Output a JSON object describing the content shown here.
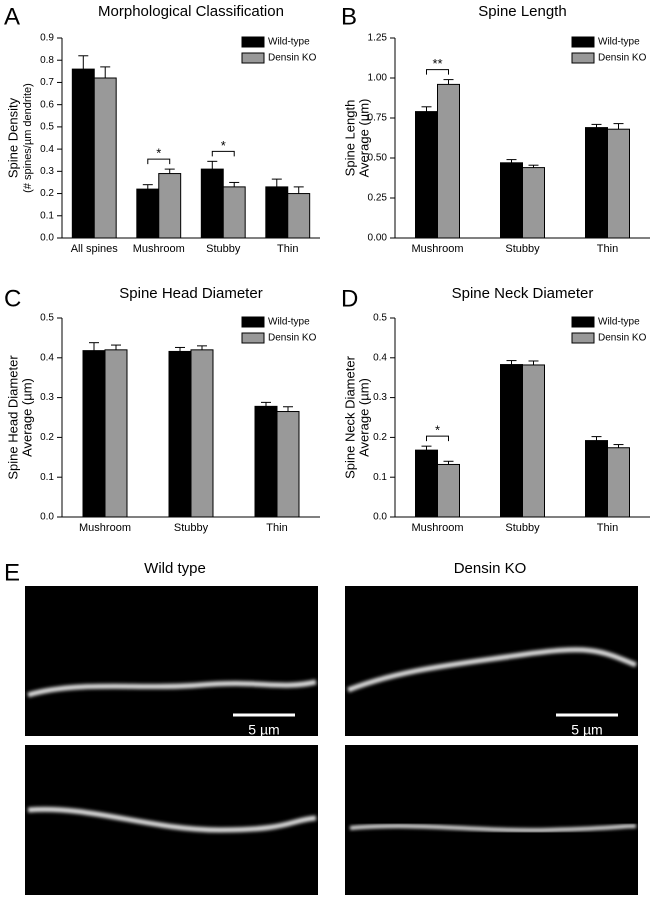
{
  "chart_data": [
    {
      "type": "bar",
      "panel": "A",
      "title": "Morphological Classification",
      "ylabel": [
        "Spine Density",
        "(# spines/µm dendrite)"
      ],
      "categories": [
        "All spines",
        "Mushroom",
        "Stubby",
        "Thin"
      ],
      "series": [
        {
          "name": "Wild-type",
          "color": "#000000",
          "values": [
            0.76,
            0.22,
            0.31,
            0.23
          ],
          "errors": [
            0.06,
            0.02,
            0.035,
            0.035
          ]
        },
        {
          "name": "Densin KO",
          "color": "#999999",
          "values": [
            0.72,
            0.29,
            0.23,
            0.2
          ],
          "errors": [
            0.05,
            0.02,
            0.02,
            0.03
          ]
        }
      ],
      "annotations": [
        {
          "label": "*",
          "category": "Mushroom"
        },
        {
          "label": "*",
          "category": "Stubby"
        }
      ],
      "ylim": [
        0,
        0.9
      ],
      "yticks": [
        {
          "value": 0,
          "label": "0.0"
        },
        0.1,
        0.2,
        0.3,
        0.4,
        0.5,
        0.6,
        0.7,
        0.8,
        0.9
      ]
    },
    {
      "type": "bar",
      "panel": "B",
      "title": "Spine Length",
      "ylabel": [
        "Spine Length",
        "Average (µm)"
      ],
      "categories": [
        "Mushroom",
        "Stubby",
        "Thin"
      ],
      "series": [
        {
          "name": "Wild-type",
          "color": "#000000",
          "values": [
            0.79,
            0.47,
            0.69
          ],
          "errors": [
            0.03,
            0.02,
            0.02
          ]
        },
        {
          "name": "Densin KO",
          "color": "#999999",
          "values": [
            0.96,
            0.44,
            0.68
          ],
          "errors": [
            0.03,
            0.015,
            0.035
          ]
        }
      ],
      "annotations": [
        {
          "label": "**",
          "category": "Mushroom"
        }
      ],
      "ylim": [
        0,
        1.25
      ],
      "yticks": [
        {
          "value": 0,
          "label": "0.00"
        },
        0.25,
        {
          "value": 0.5,
          "label": "0.50"
        },
        0.75,
        {
          "value": 1,
          "label": "1.00"
        },
        1.25
      ]
    },
    {
      "type": "bar",
      "panel": "C",
      "title": "Spine Head Diameter",
      "ylabel": [
        "Spine Head Diameter",
        "Average (µm)"
      ],
      "categories": [
        "Mushroom",
        "Stubby",
        "Thin"
      ],
      "series": [
        {
          "name": "Wild-type",
          "color": "#000000",
          "values": [
            0.418,
            0.416,
            0.278
          ],
          "errors": [
            0.02,
            0.01,
            0.01
          ]
        },
        {
          "name": "Densin KO",
          "color": "#999999",
          "values": [
            0.42,
            0.42,
            0.265
          ],
          "errors": [
            0.012,
            0.01,
            0.012
          ]
        }
      ],
      "annotations": [],
      "ylim": [
        0,
        0.5
      ],
      "yticks": [
        {
          "value": 0,
          "label": "0.0"
        },
        0.1,
        0.2,
        0.3,
        0.4,
        0.5
      ]
    },
    {
      "type": "bar",
      "panel": "D",
      "title": "Spine Neck Diameter",
      "ylabel": [
        "Spine Neck Diameter",
        "Average (µm)"
      ],
      "categories": [
        "Mushroom",
        "Stubby",
        "Thin"
      ],
      "series": [
        {
          "name": "Wild-type",
          "color": "#000000",
          "values": [
            0.168,
            0.383,
            0.192
          ],
          "errors": [
            0.01,
            0.01,
            0.01
          ]
        },
        {
          "name": "Densin KO",
          "color": "#999999",
          "values": [
            0.132,
            0.382,
            0.174
          ],
          "errors": [
            0.008,
            0.01,
            0.008
          ]
        }
      ],
      "annotations": [
        {
          "label": "*",
          "category": "Mushroom"
        }
      ],
      "ylim": [
        0,
        0.5
      ],
      "yticks": [
        {
          "value": 0,
          "label": "0.0"
        },
        0.1,
        0.2,
        0.3,
        0.4,
        0.5
      ]
    }
  ],
  "images": {
    "panel": "E",
    "columns": [
      "Wild type",
      "Densin KO"
    ],
    "scale_bar": "5 µm"
  }
}
